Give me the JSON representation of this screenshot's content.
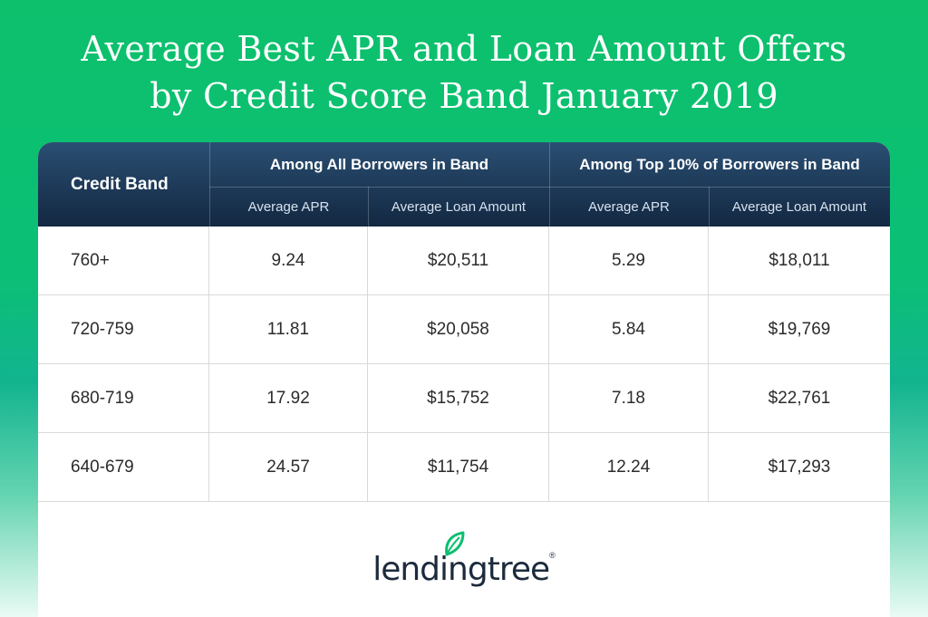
{
  "title": {
    "line1": "Average Best APR and Loan Amount Offers",
    "line2": "by Credit Score Band January 2019"
  },
  "header": {
    "credit_band": "Credit Band",
    "group_all": "Among All Borrowers in Band",
    "group_top": "Among Top 10% of Borrowers in Band",
    "sub_apr_1": "Average APR",
    "sub_loan_1": "Average Loan Amount",
    "sub_apr_2": "Average APR",
    "sub_loan_2": "Average Loan Amount"
  },
  "chart_data": {
    "type": "table",
    "title": "Average Best APR and Loan Amount Offers by Credit Score Band January 2019",
    "columns": [
      "Credit Band",
      "Among All Borrowers in Band: Average APR",
      "Among All Borrowers in Band: Average Loan Amount",
      "Among Top 10% of Borrowers in Band: Average APR",
      "Among Top 10% of Borrowers in Band: Average Loan Amount"
    ],
    "rows": [
      {
        "band": "760+",
        "all_apr": "9.24",
        "all_loan": "$20,511",
        "top_apr": "5.29",
        "top_loan": "$18,011"
      },
      {
        "band": "720-759",
        "all_apr": "11.81",
        "all_loan": "$20,058",
        "top_apr": "5.84",
        "top_loan": "$19,769"
      },
      {
        "band": "680-719",
        "all_apr": "17.92",
        "all_loan": "$15,752",
        "top_apr": "7.18",
        "top_loan": "$22,761"
      },
      {
        "band": "640-679",
        "all_apr": "24.57",
        "all_loan": "$11,754",
        "top_apr": "12.24",
        "top_loan": "$17,293"
      }
    ]
  },
  "logo": {
    "text": "lendingtree",
    "registered": "®",
    "leaf_color": "#0bbf6e"
  },
  "colors": {
    "background_top": "#0cc06c",
    "header_dark": "#1d3957",
    "text": "#2b2b2b"
  }
}
